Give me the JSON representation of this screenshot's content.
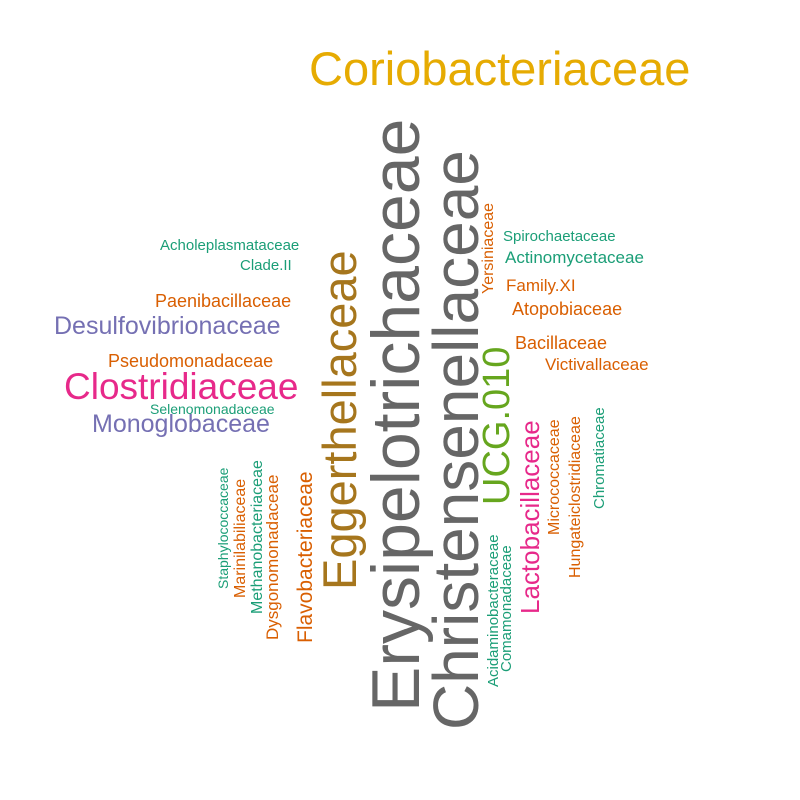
{
  "colors": {
    "orange": "#d95f02",
    "teal": "#1b9e77",
    "purple": "#7570b3",
    "pink": "#e7298a",
    "green": "#66a61e",
    "gold": "#e6ab02",
    "brown": "#a6761d",
    "gray": "#666666"
  },
  "words": {
    "coriobacteriaceae": "Coriobacteriaceae",
    "erysipelotrichaceae": "Erysipelotrichaceae",
    "christensenellaceae": "Christensenellaceae",
    "eggerthellaceae": "Eggerthellaceae",
    "ucg010": "UCG.010",
    "lactobacillaceae": "Lactobacillaceae",
    "clostridiaceae": "Clostridiaceae",
    "desulfovibrionaceae": "Desulfovibrionaceae",
    "monoglobaceae": "Monoglobaceae",
    "acholeplasmataceae": "Acholeplasmataceae",
    "cladeii": "Clade.II",
    "paenibacillaceae": "Paenibacillaceae",
    "pseudomonadaceae": "Pseudomonadaceae",
    "selenomonadaceae": "Selenomonadaceae",
    "spirochaetaceae": "Spirochaetaceae",
    "actinomycetaceae": "Actinomycetaceae",
    "familyxi": "Family.XI",
    "atopobiaceae": "Atopobiaceae",
    "bacillaceae": "Bacillaceae",
    "victivallaceae": "Victivallaceae",
    "yersiniaceae": "Yersiniaceae",
    "staphylococcaceae": "Staphylococcaceae",
    "marinilabiliaceae": "Marinilabiliaceae",
    "methanobacteriaceae": "Methanobacteriaceae",
    "dysgonomonadaceae": "Dysgonomonadaceae",
    "flavobacteriaceae": "Flavobacteriaceae",
    "acidaminobacteraceae": "Acidaminobacteraceae",
    "comamonadaceae": "Comamonadaceae",
    "micrococcaceae": "Micrococcaceae",
    "hungateiclostridiaceae": "Hungateiclostridiaceae",
    "chromatiaceae": "Chromatiaceae"
  }
}
